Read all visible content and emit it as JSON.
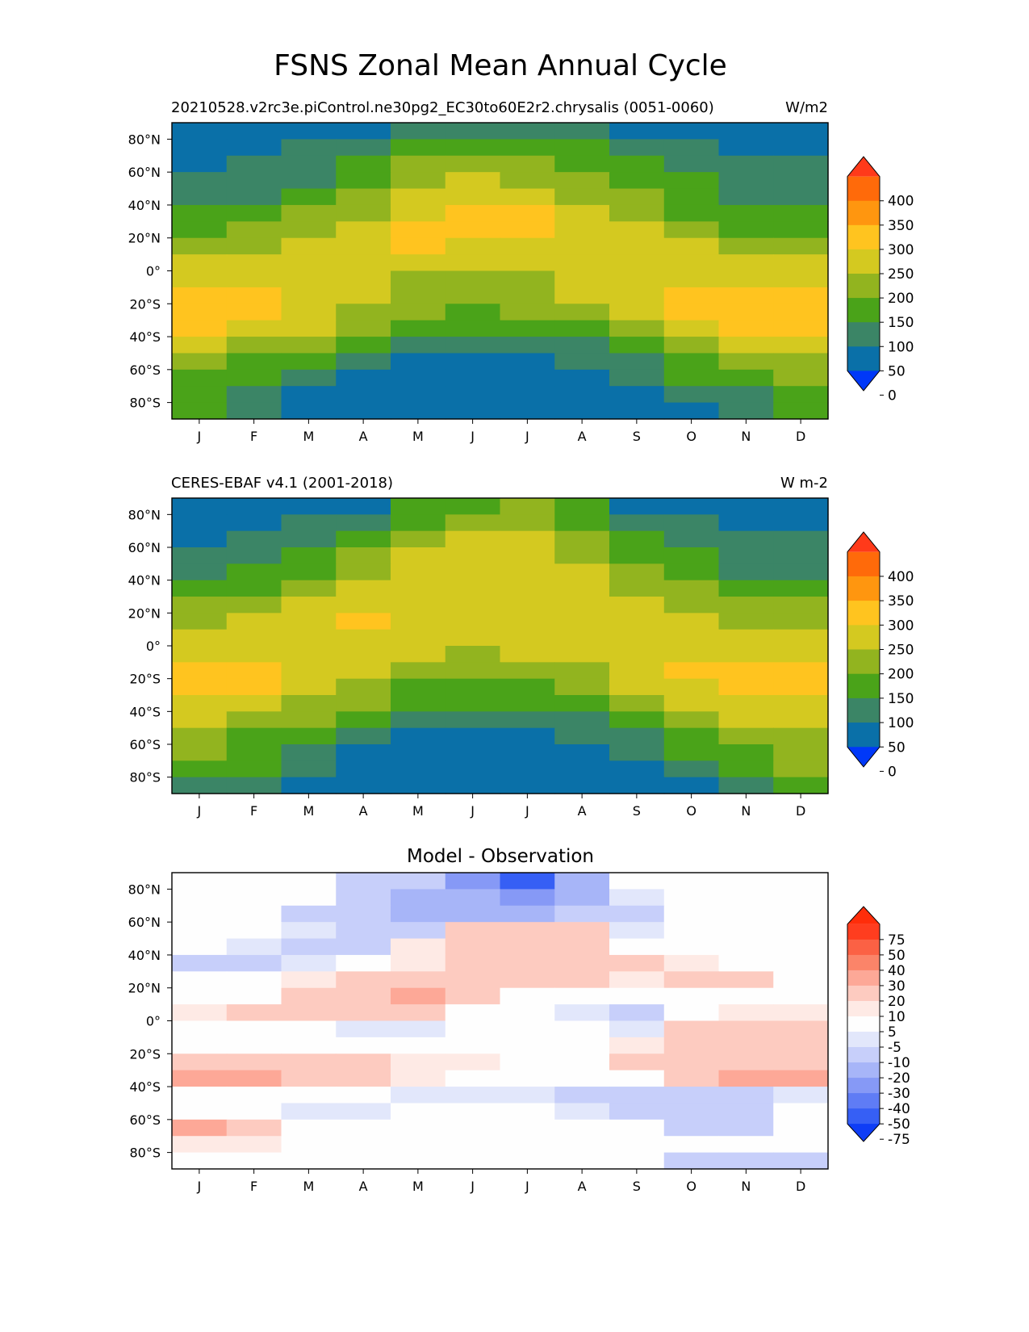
{
  "title": "FSNS Zonal Mean Annual Cycle",
  "chart_data": [
    {
      "type": "heatmap",
      "title": "20210528.v2rc3e.piControl.ne30pg2_EC30to60E2r2.chrysalis (0051-0060)",
      "units": "W/m2",
      "x": [
        "J",
        "F",
        "M",
        "A",
        "M",
        "J",
        "J",
        "A",
        "S",
        "O",
        "N",
        "D"
      ],
      "y_ticks": [
        "80°N",
        "60°N",
        "40°N",
        "20°N",
        "0°",
        "20°S",
        "40°S",
        "60°S",
        "80°S"
      ],
      "y_tick_values": [
        80,
        60,
        40,
        20,
        0,
        -20,
        -40,
        -60,
        -80
      ],
      "ylim": [
        -90,
        90
      ],
      "lat_bands": [
        85,
        75,
        65,
        55,
        45,
        35,
        25,
        15,
        5,
        -5,
        -15,
        -25,
        -35,
        -45,
        -55,
        -65,
        -75,
        -85
      ],
      "values": [
        [
          25,
          20,
          15,
          20,
          65,
          85,
          85,
          65,
          35,
          10,
          5,
          10
        ],
        [
          35,
          40,
          55,
          75,
          105,
          125,
          120,
          100,
          75,
          50,
          35,
          30
        ],
        [
          45,
          50,
          75,
          125,
          160,
          170,
          165,
          140,
          115,
          80,
          55,
          50
        ],
        [
          55,
          60,
          95,
          145,
          185,
          205,
          195,
          170,
          135,
          100,
          70,
          60
        ],
        [
          75,
          90,
          125,
          165,
          210,
          230,
          220,
          190,
          155,
          120,
          85,
          75
        ],
        [
          105,
          125,
          155,
          195,
          235,
          255,
          250,
          220,
          185,
          145,
          115,
          100
        ],
        [
          135,
          155,
          185,
          220,
          260,
          270,
          265,
          235,
          205,
          175,
          145,
          130
        ],
        [
          170,
          185,
          215,
          245,
          260,
          245,
          235,
          230,
          225,
          215,
          185,
          170
        ],
        [
          215,
          215,
          220,
          225,
          215,
          200,
          210,
          215,
          220,
          220,
          210,
          205
        ],
        [
          230,
          230,
          225,
          220,
          195,
          175,
          190,
          210,
          225,
          235,
          235,
          230
        ],
        [
          255,
          250,
          240,
          215,
          180,
          160,
          175,
          200,
          230,
          260,
          265,
          265
        ],
        [
          275,
          265,
          235,
          190,
          155,
          135,
          150,
          175,
          215,
          255,
          275,
          280
        ],
        [
          265,
          245,
          205,
          155,
          120,
          100,
          110,
          145,
          190,
          235,
          255,
          265
        ],
        [
          220,
          195,
          150,
          110,
          80,
          60,
          70,
          95,
          135,
          180,
          215,
          230
        ],
        [
          175,
          140,
          105,
          70,
          40,
          30,
          35,
          55,
          90,
          130,
          165,
          190
        ],
        [
          145,
          115,
          80,
          40,
          20,
          10,
          15,
          30,
          60,
          100,
          130,
          160
        ],
        [
          125,
          95,
          45,
          20,
          5,
          0,
          0,
          10,
          30,
          60,
          95,
          135
        ],
        [
          100,
          70,
          25,
          5,
          0,
          0,
          0,
          0,
          10,
          35,
          90,
          120
        ]
      ],
      "colorbar": {
        "ticks": [
          "400",
          "350",
          "300",
          "250",
          "200",
          "150",
          "100",
          "50",
          "0"
        ],
        "colors": [
          "#ff3a1a",
          "#ff6a0a",
          "#ff960f",
          "#ffc41f",
          "#d4c920",
          "#92b41f",
          "#4aa319",
          "#3b8566",
          "#0a70a8",
          "#0038f8"
        ]
      }
    },
    {
      "type": "heatmap",
      "title": "CERES-EBAF v4.1 (2001-2018)",
      "units": "W m-2",
      "x": [
        "J",
        "F",
        "M",
        "A",
        "M",
        "J",
        "J",
        "A",
        "S",
        "O",
        "N",
        "D"
      ],
      "y_ticks": [
        "80°N",
        "60°N",
        "40°N",
        "20°N",
        "0°",
        "20°S",
        "40°S",
        "60°S",
        "80°S"
      ],
      "y_tick_values": [
        80,
        60,
        40,
        20,
        0,
        -20,
        -40,
        -60,
        -80
      ],
      "ylim": [
        -90,
        90
      ],
      "lat_bands": [
        85,
        75,
        65,
        55,
        45,
        35,
        25,
        15,
        5,
        -5,
        -15,
        -25,
        -35,
        -45,
        -55,
        -65,
        -75,
        -85
      ],
      "values": [
        [
          25,
          25,
          30,
          45,
          100,
          140,
          150,
          120,
          45,
          15,
          10,
          15
        ],
        [
          35,
          40,
          60,
          90,
          145,
          175,
          175,
          145,
          90,
          55,
          35,
          30
        ],
        [
          45,
          55,
          85,
          135,
          185,
          205,
          200,
          170,
          120,
          80,
          55,
          50
        ],
        [
          60,
          70,
          110,
          165,
          205,
          220,
          210,
          185,
          145,
          105,
          75,
          60
        ],
        [
          85,
          110,
          145,
          185,
          225,
          235,
          225,
          200,
          170,
          130,
          95,
          80
        ],
        [
          120,
          145,
          175,
          210,
          240,
          245,
          235,
          215,
          190,
          160,
          125,
          110
        ],
        [
          160,
          175,
          200,
          230,
          245,
          245,
          240,
          225,
          210,
          195,
          165,
          155
        ],
        [
          190,
          205,
          220,
          250,
          240,
          235,
          235,
          230,
          225,
          215,
          195,
          185
        ],
        [
          215,
          220,
          225,
          230,
          220,
          210,
          215,
          220,
          225,
          225,
          215,
          210
        ],
        [
          235,
          235,
          230,
          225,
          205,
          190,
          205,
          215,
          225,
          235,
          235,
          235
        ],
        [
          260,
          255,
          240,
          210,
          175,
          160,
          170,
          195,
          225,
          250,
          255,
          260
        ],
        [
          265,
          250,
          225,
          185,
          145,
          130,
          140,
          165,
          200,
          230,
          250,
          260
        ],
        [
          245,
          225,
          195,
          150,
          115,
          100,
          105,
          130,
          170,
          210,
          235,
          245
        ],
        [
          210,
          185,
          150,
          105,
          80,
          60,
          65,
          90,
          120,
          165,
          200,
          220
        ],
        [
          170,
          140,
          115,
          80,
          45,
          35,
          40,
          60,
          95,
          140,
          170,
          190
        ],
        [
          150,
          120,
          85,
          45,
          20,
          15,
          15,
          35,
          75,
          110,
          145,
          170
        ],
        [
          125,
          100,
          50,
          20,
          5,
          0,
          5,
          15,
          40,
          70,
          105,
          150
        ],
        [
          95,
          70,
          30,
          5,
          0,
          0,
          0,
          0,
          15,
          40,
          85,
          140
        ]
      ],
      "colorbar": {
        "ticks": [
          "400",
          "350",
          "300",
          "250",
          "200",
          "150",
          "100",
          "50",
          "0"
        ],
        "colors": [
          "#ff3a1a",
          "#ff6a0a",
          "#ff960f",
          "#ffc41f",
          "#d4c920",
          "#92b41f",
          "#4aa319",
          "#3b8566",
          "#0a70a8",
          "#0038f8"
        ]
      }
    },
    {
      "type": "heatmap",
      "title": "Model - Observation",
      "x": [
        "J",
        "F",
        "M",
        "A",
        "M",
        "J",
        "J",
        "A",
        "S",
        "O",
        "N",
        "D"
      ],
      "y_ticks": [
        "80°N",
        "60°N",
        "40°N",
        "20°N",
        "0°",
        "20°S",
        "40°S",
        "60°S",
        "80°S"
      ],
      "y_tick_values": [
        80,
        60,
        40,
        20,
        0,
        -20,
        -40,
        -60,
        -80
      ],
      "ylim": [
        -90,
        90
      ],
      "lat_bands": [
        85,
        75,
        65,
        55,
        45,
        35,
        25,
        15,
        5,
        -5,
        -15,
        -25,
        -35,
        -45,
        -55,
        -65,
        -75,
        -85
      ],
      "values": [
        [
          0,
          0,
          -3,
          -12,
          -18,
          -35,
          -55,
          -25,
          0,
          0,
          0,
          0
        ],
        [
          0,
          0,
          -5,
          -15,
          -22,
          -30,
          -40,
          -25,
          -8,
          0,
          0,
          0
        ],
        [
          0,
          -4,
          -12,
          -15,
          -25,
          -25,
          -30,
          -18,
          -15,
          0,
          0,
          0
        ],
        [
          0,
          -5,
          -10,
          -18,
          -15,
          10,
          12,
          15,
          -8,
          -3,
          -3,
          0
        ],
        [
          0,
          -10,
          -12,
          -12,
          8,
          15,
          12,
          12,
          3,
          0,
          0,
          -5
        ],
        [
          -12,
          -12,
          -8,
          3,
          5,
          18,
          15,
          12,
          12,
          8,
          0,
          -3
        ],
        [
          0,
          0,
          8,
          18,
          18,
          18,
          15,
          12,
          8,
          10,
          12,
          0
        ],
        [
          0,
          3,
          12,
          18,
          20,
          15,
          3,
          3,
          4,
          2,
          0,
          0
        ],
        [
          8,
          10,
          10,
          12,
          10,
          2,
          -4,
          -8,
          -12,
          0,
          5,
          6
        ],
        [
          -5,
          0,
          0,
          -6,
          -10,
          -5,
          0,
          -5,
          -8,
          10,
          18,
          15
        ],
        [
          0,
          -5,
          0,
          0,
          0,
          0,
          0,
          3,
          8,
          18,
          18,
          15
        ],
        [
          12,
          10,
          10,
          10,
          5,
          8,
          0,
          0,
          12,
          18,
          18,
          18
        ],
        [
          25,
          20,
          10,
          12,
          6,
          0,
          0,
          0,
          0,
          18,
          22,
          22
        ],
        [
          0,
          0,
          0,
          -5,
          -8,
          -8,
          -10,
          -15,
          -15,
          -12,
          -12,
          -10
        ],
        [
          -3,
          -5,
          -6,
          -8,
          0,
          0,
          0,
          -10,
          -18,
          -15,
          -15,
          -3
        ],
        [
          25,
          18,
          3,
          0,
          0,
          0,
          0,
          0,
          0,
          -12,
          -15,
          -5
        ],
        [
          8,
          6,
          0,
          0,
          0,
          0,
          0,
          0,
          0,
          0,
          0,
          0
        ],
        [
          -5,
          -3,
          0,
          0,
          0,
          0,
          0,
          0,
          0,
          -12,
          -15,
          -15
        ]
      ],
      "colorbar": {
        "ticks": [
          "75",
          "50",
          "40",
          "30",
          "20",
          "10",
          "5",
          "-5",
          "-10",
          "-20",
          "-30",
          "-40",
          "-50",
          "-75"
        ],
        "colors": [
          "#ff2d0a",
          "#ff3d1f",
          "#fb6144",
          "#fb8469",
          "#fda897",
          "#fdcbc0",
          "#feeae5",
          "#fefefe",
          "#e2e7fb",
          "#c7cffa",
          "#a7b5f8",
          "#8699f6",
          "#5f7cf5",
          "#365ff5",
          "#0e3df6"
        ]
      }
    }
  ]
}
